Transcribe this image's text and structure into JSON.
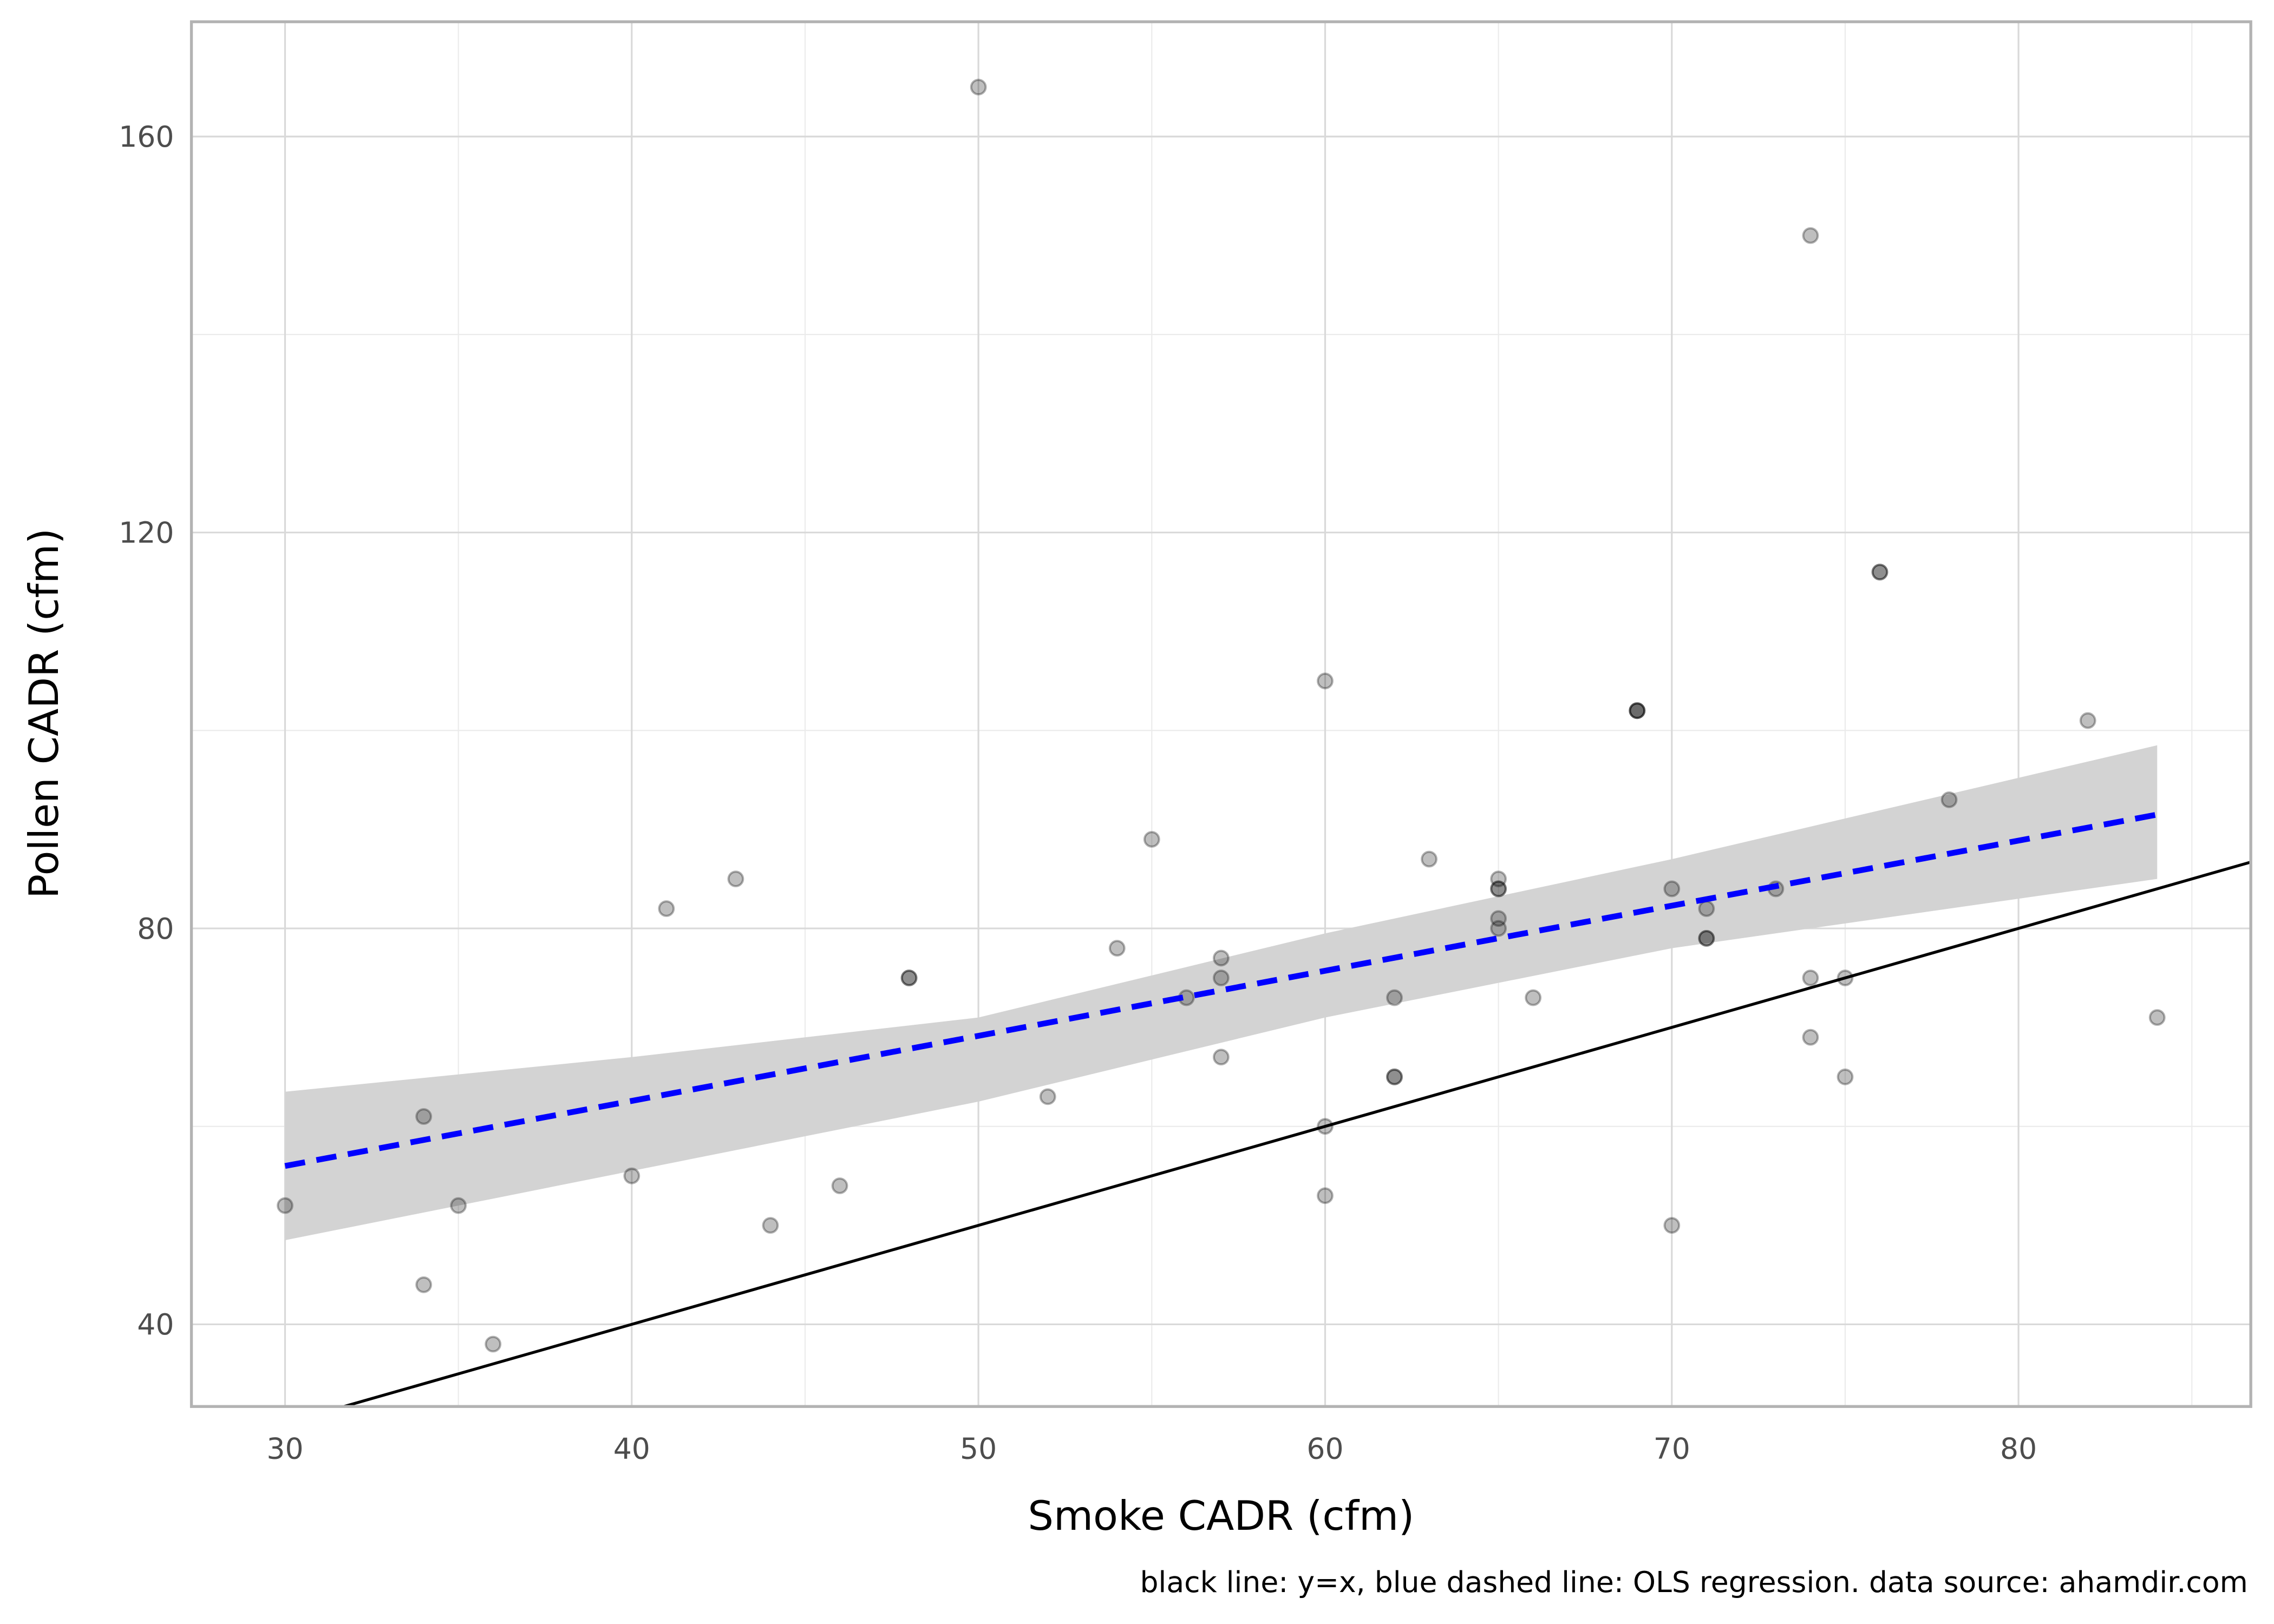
{
  "chart_data": {
    "type": "scatter",
    "title": "",
    "xlabel": "Smoke CADR (cfm)",
    "ylabel": "Pollen CADR (cfm)",
    "caption": "black line: y=x, blue dashed line: OLS regression. data source: ahamdir.com",
    "xlim": [
      27.3,
      86.7
    ],
    "ylim": [
      31.7,
      171.6
    ],
    "xticks": [
      30,
      40,
      50,
      60,
      70,
      80
    ],
    "yticks": [
      40,
      80,
      120,
      160
    ],
    "grid": true,
    "points": [
      [
        30,
        52
      ],
      [
        34,
        61
      ],
      [
        34,
        44
      ],
      [
        35,
        52
      ],
      [
        36,
        38
      ],
      [
        40,
        55
      ],
      [
        41,
        82
      ],
      [
        43,
        85
      ],
      [
        44,
        50
      ],
      [
        46,
        54
      ],
      [
        48,
        75
      ],
      [
        48,
        75
      ],
      [
        50,
        165
      ],
      [
        52,
        63
      ],
      [
        54,
        78
      ],
      [
        55,
        89
      ],
      [
        56,
        73
      ],
      [
        57,
        77
      ],
      [
        57,
        75
      ],
      [
        57,
        67
      ],
      [
        60,
        105
      ],
      [
        60,
        60
      ],
      [
        60,
        53
      ],
      [
        62,
        73
      ],
      [
        62,
        65
      ],
      [
        62,
        65
      ],
      [
        63,
        87
      ],
      [
        65,
        85
      ],
      [
        65,
        84
      ],
      [
        65,
        84
      ],
      [
        65,
        81
      ],
      [
        65,
        80
      ],
      [
        66,
        73
      ],
      [
        69,
        102
      ],
      [
        69,
        102
      ],
      [
        69,
        102
      ],
      [
        70,
        84
      ],
      [
        70,
        50
      ],
      [
        71,
        82
      ],
      [
        71,
        79
      ],
      [
        71,
        79
      ],
      [
        73,
        84
      ],
      [
        74,
        150
      ],
      [
        74,
        75
      ],
      [
        74,
        69
      ],
      [
        75,
        75
      ],
      [
        75,
        65
      ],
      [
        76,
        116
      ],
      [
        76,
        116
      ],
      [
        78,
        93
      ],
      [
        82,
        101
      ],
      [
        84,
        71
      ]
    ],
    "identity_line": {
      "label": "y=x",
      "color": "#000000"
    },
    "regression": {
      "label": "OLS regression",
      "color": "#0000ff",
      "x": [
        30,
        84
      ],
      "y": [
        56,
        91.5
      ],
      "ci_x": [
        30,
        40,
        50,
        60,
        70,
        84
      ],
      "ci_lower": [
        48.5,
        55.5,
        62.5,
        71,
        78,
        85
      ],
      "ci_upper": [
        63.5,
        67,
        71,
        79.5,
        87,
        98.5
      ],
      "ci_color": "#d3d3d3"
    },
    "point_color": "#000000"
  }
}
